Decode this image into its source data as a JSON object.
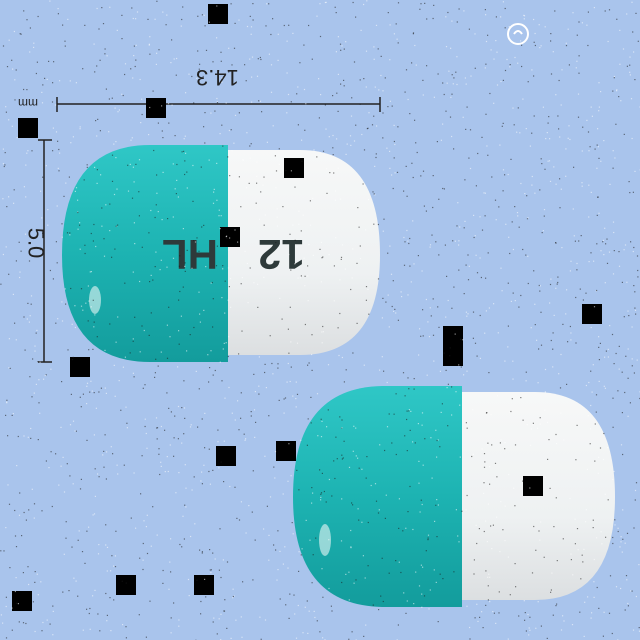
{
  "measurements": {
    "length": "14.3",
    "width": "5.0",
    "unit": "mm"
  },
  "imprint": {
    "left": "HL",
    "right": "12"
  },
  "colors": {
    "background": "#a9c4ec",
    "capsule_cap": "#1fb2b2",
    "capsule_body": "#f3f5f6"
  },
  "logo_icon": "pharmacy-logo-icon"
}
